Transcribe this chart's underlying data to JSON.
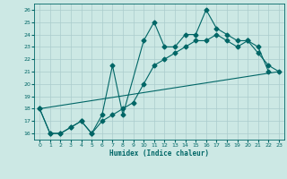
{
  "xlabel": "Humidex (Indice chaleur)",
  "xlim": [
    -0.5,
    23.5
  ],
  "ylim": [
    15.5,
    26.5
  ],
  "yticks": [
    16,
    17,
    18,
    19,
    20,
    21,
    22,
    23,
    24,
    25,
    26
  ],
  "xticks": [
    0,
    1,
    2,
    3,
    4,
    5,
    6,
    7,
    8,
    9,
    10,
    11,
    12,
    13,
    14,
    15,
    16,
    17,
    18,
    19,
    20,
    21,
    22,
    23
  ],
  "background_color": "#cce8e4",
  "grid_color": "#aacccc",
  "line_color": "#006666",
  "line1_x": [
    0,
    1,
    2,
    3,
    4,
    5,
    6,
    7,
    8,
    10,
    11,
    12,
    13,
    14,
    15,
    16,
    17,
    18,
    19,
    20,
    21,
    22
  ],
  "line1_y": [
    18.0,
    16.0,
    16.0,
    16.5,
    17.0,
    16.0,
    17.5,
    21.5,
    17.5,
    23.5,
    25.0,
    23.0,
    23.0,
    24.0,
    24.0,
    26.0,
    24.5,
    24.0,
    23.5,
    23.5,
    23.0,
    21.0
  ],
  "line2_x": [
    0,
    1,
    2,
    3,
    4,
    5,
    6,
    7,
    8,
    9,
    10,
    11,
    12,
    13,
    14,
    15,
    16,
    17,
    18,
    19,
    20,
    21,
    22,
    23
  ],
  "line2_y": [
    18.0,
    16.0,
    16.0,
    16.5,
    17.0,
    16.0,
    17.0,
    17.5,
    18.0,
    18.5,
    20.0,
    21.5,
    22.0,
    22.5,
    23.0,
    23.5,
    23.5,
    24.0,
    23.5,
    23.0,
    23.5,
    22.5,
    21.5,
    21.0
  ],
  "line3_x": [
    0,
    23
  ],
  "line3_y": [
    18.0,
    21.0
  ],
  "figsize": [
    3.2,
    2.0
  ],
  "dpi": 100
}
